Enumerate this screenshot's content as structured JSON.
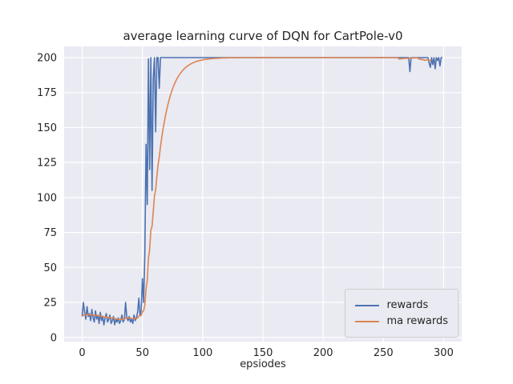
{
  "chart_data": {
    "type": "line",
    "title": "average learning curve of DQN for CartPole-v0",
    "xlabel": "epsiodes",
    "ylabel": "",
    "xlim": [
      -15,
      315
    ],
    "ylim": [
      -3,
      208
    ],
    "xticks": [
      0,
      50,
      100,
      150,
      200,
      250,
      300
    ],
    "yticks": [
      0,
      25,
      50,
      75,
      100,
      125,
      150,
      175,
      200
    ],
    "grid": true,
    "axes_bg": "#eaeaf2",
    "grid_color": "#ffffff",
    "text_color": "#262626",
    "legend_position": "lower right",
    "x_is_index": true,
    "series": [
      {
        "name": "rewards",
        "color": "#4c72b0",
        "values": [
          15,
          25,
          18,
          13,
          22,
          15,
          17,
          12,
          20,
          14,
          11,
          19,
          13,
          16,
          10,
          18,
          12,
          15,
          9,
          14,
          17,
          11,
          13,
          16,
          10,
          12,
          15,
          9,
          13,
          11,
          14,
          10,
          12,
          16,
          11,
          13,
          25,
          14,
          12,
          15,
          11,
          13,
          10,
          16,
          12,
          14,
          18,
          28,
          16,
          20,
          42,
          25,
          60,
          138,
          95,
          199,
          120,
          200,
          105,
          185,
          200,
          147,
          200,
          200,
          178,
          200,
          200,
          200,
          200,
          200,
          200,
          200,
          200,
          200,
          200,
          200,
          200,
          200,
          200,
          200,
          200,
          200,
          200,
          200,
          200,
          200,
          200,
          200,
          200,
          200,
          200,
          200,
          200,
          200,
          200,
          200,
          200,
          200,
          200,
          200,
          200,
          200,
          200,
          200,
          200,
          200,
          200,
          200,
          200,
          200,
          200,
          200,
          200,
          200,
          200,
          200,
          200,
          200,
          200,
          200,
          200,
          200,
          200,
          200,
          200,
          200,
          200,
          200,
          200,
          200,
          200,
          200,
          200,
          200,
          200,
          200,
          200,
          200,
          200,
          200,
          200,
          200,
          200,
          200,
          200,
          200,
          200,
          200,
          200,
          200,
          200,
          200,
          200,
          200,
          200,
          200,
          200,
          200,
          200,
          200,
          200,
          200,
          200,
          200,
          200,
          200,
          200,
          200,
          200,
          200,
          200,
          200,
          200,
          200,
          200,
          200,
          200,
          200,
          200,
          200,
          200,
          200,
          200,
          200,
          200,
          200,
          200,
          200,
          200,
          200,
          200,
          200,
          200,
          200,
          200,
          200,
          200,
          200,
          200,
          200,
          200,
          200,
          200,
          200,
          200,
          200,
          200,
          200,
          200,
          200,
          200,
          200,
          200,
          200,
          200,
          200,
          200,
          200,
          200,
          200,
          200,
          200,
          200,
          200,
          200,
          200,
          200,
          200,
          200,
          200,
          200,
          200,
          200,
          200,
          200,
          200,
          200,
          200,
          200,
          200,
          200,
          200,
          200,
          200,
          200,
          200,
          200,
          200,
          200,
          200,
          200,
          200,
          200,
          200,
          200,
          200,
          200,
          200,
          200,
          200,
          200,
          200,
          200,
          200,
          200,
          200,
          200,
          200,
          200,
          200,
          200,
          200,
          190,
          200,
          200,
          200,
          200,
          200,
          200,
          200,
          200,
          200,
          200,
          200,
          200,
          200,
          200,
          200,
          196,
          193,
          200,
          195,
          200,
          192,
          200,
          198,
          200,
          194,
          200,
          200
        ]
      },
      {
        "name": "ma rewards",
        "color": "#dd8452",
        "values": [
          15.0,
          16.0,
          16.2,
          15.9,
          16.5,
          16.3,
          16.4,
          16.0,
          16.4,
          16.1,
          15.6,
          16.0,
          15.7,
          15.7,
          15.1,
          15.4,
          15.1,
          15.1,
          14.5,
          14.4,
          14.7,
          14.3,
          14.2,
          14.4,
          13.9,
          13.7,
          13.9,
          13.4,
          13.3,
          13.1,
          13.2,
          12.9,
          12.8,
          13.1,
          12.9,
          12.9,
          14.1,
          14.1,
          13.9,
          14.0,
          13.7,
          13.6,
          13.3,
          13.5,
          13.4,
          13.5,
          13.9,
          15.3,
          15.4,
          15.8,
          18.5,
          19.1,
          23.2,
          34.7,
          40.7,
          56.5,
          62.9,
          76.6,
          79.4,
          90.0,
          101.0,
          105.6,
          115.0,
          123.5,
          129.0,
          136.1,
          142.5,
          148.2,
          153.4,
          158.1,
          162.3,
          166.0,
          169.4,
          172.5,
          175.2,
          177.7,
          180.0,
          182.0,
          183.8,
          185.4,
          186.8,
          188.2,
          189.3,
          190.4,
          191.4,
          192.2,
          193.0,
          193.7,
          194.3,
          194.9,
          195.4,
          195.9,
          196.3,
          196.7,
          197.0,
          197.3,
          197.6,
          197.8,
          198.0,
          198.2,
          198.4,
          198.6,
          198.7,
          198.8,
          198.9,
          199.0,
          199.1,
          199.2,
          199.3,
          199.3,
          199.4,
          199.5,
          199.5,
          199.6,
          199.6,
          199.6,
          199.7,
          199.7,
          199.7,
          199.8,
          199.8,
          199.8,
          199.9,
          199.9,
          199.9,
          199.9,
          199.9,
          199.9,
          200.0,
          200.0,
          200.0,
          200.0,
          200.0,
          200.0,
          200.0,
          200.0,
          200.0,
          200.0,
          200.0,
          200.0,
          200.0,
          200.0,
          200.0,
          200.0,
          200.0,
          200.0,
          200.0,
          200.0,
          200.0,
          200.0,
          200.0,
          200.0,
          200.0,
          200.0,
          200.0,
          200.0,
          200.0,
          200.0,
          200.0,
          200.0,
          200.0,
          200.0,
          200.0,
          200.0,
          200.0,
          200.0,
          200.0,
          200.0,
          200.0,
          200.0,
          200.0,
          200.0,
          200.0,
          200.0,
          200.0,
          200.0,
          200.0,
          200.0,
          200.0,
          200.0,
          200.0,
          200.0,
          200.0,
          200.0,
          200.0,
          200.0,
          200.0,
          200.0,
          200.0,
          200.0,
          200.0,
          200.0,
          200.0,
          200.0,
          200.0,
          200.0,
          200.0,
          200.0,
          200.0,
          200.0,
          200.0,
          200.0,
          200.0,
          200.0,
          200.0,
          200.0,
          200.0,
          200.0,
          200.0,
          200.0,
          200.0,
          200.0,
          200.0,
          200.0,
          200.0,
          200.0,
          200.0,
          200.0,
          200.0,
          200.0,
          200.0,
          200.0,
          200.0,
          200.0,
          200.0,
          200.0,
          200.0,
          200.0,
          200.0,
          200.0,
          200.0,
          200.0,
          200.0,
          200.0,
          200.0,
          200.0,
          200.0,
          200.0,
          200.0,
          200.0,
          200.0,
          200.0,
          200.0,
          200.0,
          200.0,
          200.0,
          200.0,
          200.0,
          200.0,
          200.0,
          200.0,
          200.0,
          200.0,
          200.0,
          200.0,
          200.0,
          200.0,
          200.0,
          200.0,
          200.0,
          200.0,
          200.0,
          200.0,
          199.0,
          199.1,
          199.2,
          199.3,
          199.4,
          199.4,
          199.5,
          199.5,
          199.6,
          199.6,
          199.7,
          199.7,
          199.7,
          199.8,
          199.8,
          199.8,
          199.4,
          198.8,
          198.9,
          198.5,
          198.7,
          198.0,
          198.2,
          198.2,
          198.4,
          198.0,
          198.2,
          198.4
        ]
      }
    ]
  }
}
